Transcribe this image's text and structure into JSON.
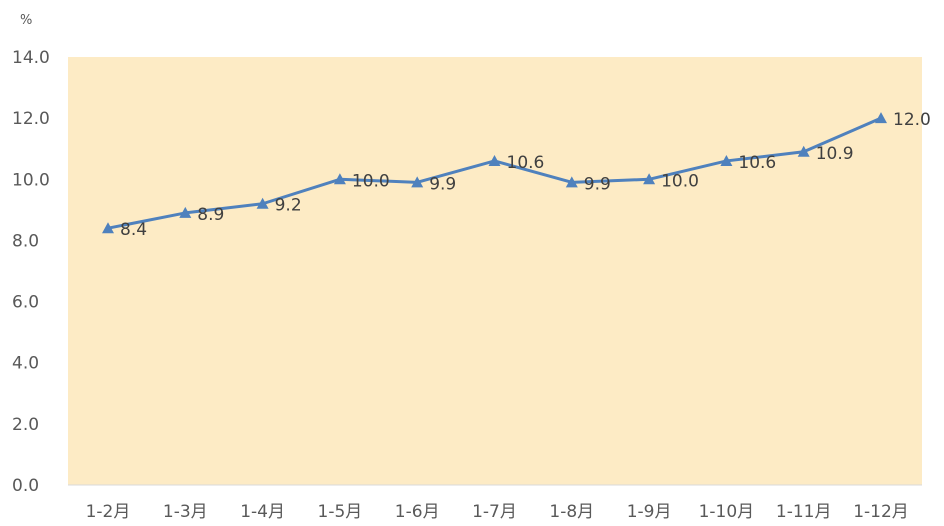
{
  "chart_data": {
    "type": "line",
    "unit": "%",
    "categories": [
      "1-2月",
      "1-3月",
      "1-4月",
      "1-5月",
      "1-6月",
      "1-7月",
      "1-8月",
      "1-9月",
      "1-10月",
      "1-11月",
      "1-12月"
    ],
    "series": [
      {
        "values": [
          8.4,
          8.9,
          9.2,
          10.0,
          9.9,
          10.6,
          9.9,
          10.0,
          10.6,
          10.9,
          12.0
        ],
        "labels": [
          "8.4",
          "8.9",
          "9.2",
          "10.0",
          "9.9",
          "10.6",
          "9.9",
          "10.0",
          "10.6",
          "10.9",
          "12.0"
        ]
      }
    ],
    "yticks": [
      "14.0",
      "12.0",
      "10.0",
      "8.0",
      "6.0",
      "4.0",
      "2.0",
      "0.0"
    ],
    "ylim": [
      0,
      14
    ],
    "grid": false,
    "legend": "none",
    "colors": {
      "plot_background": "#fdebc5",
      "line": "#4f81bd",
      "marker": "#4f81bd",
      "axis_line": "#d9d9d9"
    }
  }
}
